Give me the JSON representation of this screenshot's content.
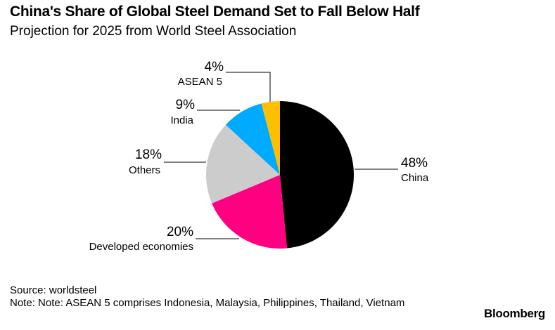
{
  "header": {
    "title": "China's Share of Global Steel Demand Set to Fall Below Half",
    "subtitle": "Projection for 2025 from World Steel Association"
  },
  "footer": {
    "source": "Source: worldsteel",
    "note": "Note: Note: ASEAN 5 comprises Indonesia, Malaysia, Philippines, Thailand, Vietnam",
    "brand": "Bloomberg"
  },
  "chart_data": {
    "type": "pie",
    "slices": [
      {
        "label": "China",
        "value": 48,
        "display": "48%",
        "color": "#000000"
      },
      {
        "label": "Developed economies",
        "value": 20,
        "display": "20%",
        "color": "#ff0080"
      },
      {
        "label": "Others",
        "value": 18,
        "display": "18%",
        "color": "#cccccc"
      },
      {
        "label": "India",
        "value": 9,
        "display": "9%",
        "color": "#00aaff"
      },
      {
        "label": "ASEAN 5",
        "value": 4,
        "display": "4%",
        "color": "#ffbf00"
      }
    ]
  }
}
